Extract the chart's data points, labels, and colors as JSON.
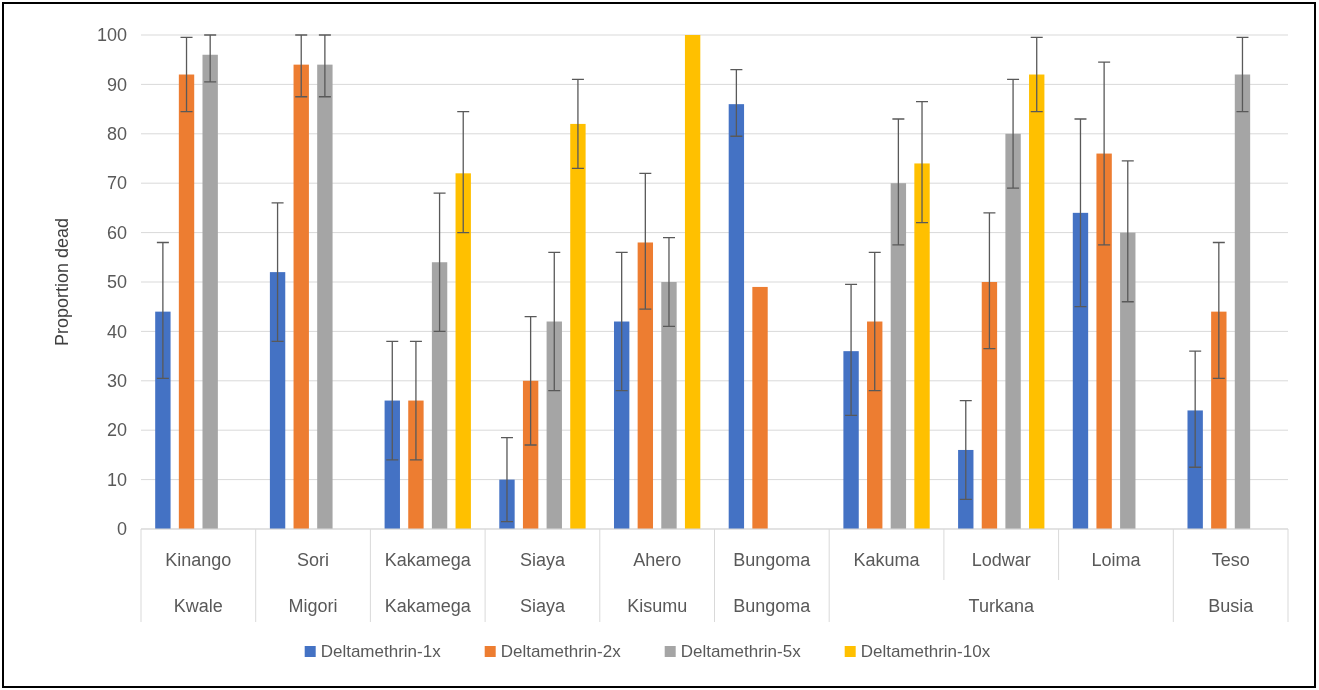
{
  "chart_data": {
    "type": "bar",
    "ylabel": "Proportion dead",
    "categories": [
      "Kinango",
      "Sori",
      "Kakamega",
      "Siaya",
      "Ahero",
      "Bungoma",
      "Kakuma",
      "Lodwar",
      "Loima",
      "Teso"
    ],
    "annotations": [
      "Kwale",
      "Migori",
      "Kakamega",
      "Siaya",
      "Kisumu",
      "Bungoma",
      "Turkana",
      "Busia"
    ],
    "series": [
      {
        "name": "Deltamethrin-1x",
        "color": "#4472c4",
        "values": [
          44,
          52,
          26,
          10,
          42,
          86,
          36,
          16,
          64,
          24
        ],
        "errors": [
          [
            30.5,
            58
          ],
          [
            38,
            66
          ],
          [
            14,
            38
          ],
          [
            1.5,
            18.5
          ],
          [
            28,
            56
          ],
          [
            79.5,
            93
          ],
          [
            23,
            49.5
          ],
          [
            6,
            26
          ],
          [
            45,
            83
          ],
          [
            12.5,
            36
          ]
        ]
      },
      {
        "name": "Deltamethrin-2x",
        "color": "#ed7d31",
        "values": [
          92,
          94,
          26,
          30,
          58,
          49,
          42,
          50,
          76,
          44
        ],
        "errors": [
          [
            84.5,
            99.5
          ],
          [
            87.5,
            100
          ],
          [
            14,
            38
          ],
          [
            17,
            43
          ],
          [
            44.5,
            72
          ],
          null,
          [
            28,
            56
          ],
          [
            36.5,
            64
          ],
          [
            57.5,
            94.5
          ],
          [
            30.5,
            58
          ]
        ]
      },
      {
        "name": "Deltamethrin-5x",
        "color": "#a5a5a5",
        "values": [
          96,
          94,
          54,
          42,
          50,
          null,
          70,
          80,
          60,
          92
        ],
        "errors": [
          [
            90.5,
            100
          ],
          [
            87.5,
            100
          ],
          [
            40,
            68
          ],
          [
            28,
            56
          ],
          [
            41,
            59
          ],
          null,
          [
            57.5,
            83
          ],
          [
            69,
            91
          ],
          [
            46,
            74.5
          ],
          [
            84.5,
            99.5
          ]
        ]
      },
      {
        "name": "Deltamethrin-10x",
        "color": "#ffc000",
        "values": [
          null,
          null,
          72,
          82,
          100,
          null,
          74,
          92,
          null,
          null
        ],
        "errors": [
          null,
          null,
          [
            60,
            84.5
          ],
          [
            73,
            91
          ],
          null,
          null,
          [
            62,
            86.5
          ],
          [
            84.5,
            99.5
          ],
          null,
          null
        ]
      }
    ],
    "ylim": [
      0,
      100
    ],
    "yticks": [
      0,
      10,
      20,
      30,
      40,
      50,
      60,
      70,
      80,
      90,
      100
    ],
    "grid": "y",
    "legend": "bottom"
  }
}
